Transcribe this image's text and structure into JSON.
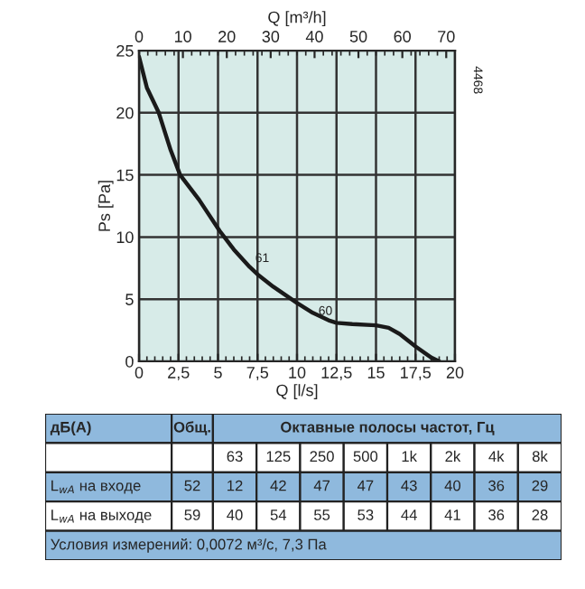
{
  "chart_data": [
    {
      "type": "line",
      "xlabel": "Q [l/s]",
      "ylabel": "Ps [Pa]",
      "x2label": "Q [m³/h]",
      "x": [
        0,
        0.5,
        1.25,
        2,
        2.6,
        3.8,
        5.1,
        6,
        7,
        7.5,
        8.5,
        10,
        11,
        12,
        12.5,
        13.5,
        15,
        15.8,
        16.5,
        17.5,
        18.5,
        19
      ],
      "series": [
        {
          "color": "#1a1a1a",
          "values": [
            24.5,
            22,
            20,
            17,
            15,
            13,
            10.5,
            9,
            7.6,
            7,
            6,
            4.7,
            3.9,
            3.3,
            3.1,
            3.0,
            2.9,
            2.7,
            2.2,
            1.2,
            0.3,
            0
          ]
        }
      ],
      "xlim": [
        0,
        20
      ],
      "ylim": [
        0,
        25
      ],
      "xticks": [
        0,
        {
          "value": 2.5,
          "label": "2,5"
        },
        5,
        {
          "value": 7.5,
          "label": "7,5"
        },
        10,
        {
          "value": 12.5,
          "label": "12,5"
        },
        15,
        {
          "value": 17.5,
          "label": "17,5"
        },
        20
      ],
      "yticks": [
        0,
        5,
        10,
        15,
        20,
        25
      ],
      "x2lim": [
        0,
        72
      ],
      "x2ticks": [
        0,
        10,
        20,
        30,
        40,
        50,
        60,
        70
      ],
      "grid": true,
      "legend": false,
      "marker": "none",
      "line_style": "solid",
      "annotations": [
        "61",
        "60",
        "4468"
      ]
    },
    {
      "type": "other",
      "annotations": [
        "дБ(А)",
        "Общ.",
        "Октавные полосы частот, Гц",
        "63",
        "125",
        "250",
        "500",
        "1k",
        "2k",
        "4k",
        "8k",
        "L$_{wA}$ на входе",
        "52",
        "12",
        "42",
        "47",
        "47",
        "43",
        "40",
        "36",
        "29",
        "L$_{wA}$ на выходе",
        "59",
        "40",
        "54",
        "55",
        "53",
        "44",
        "41",
        "36",
        "28",
        "Условия измерений: 0,0072 м³/с, 7,3 Па"
      ]
    }
  ]
}
